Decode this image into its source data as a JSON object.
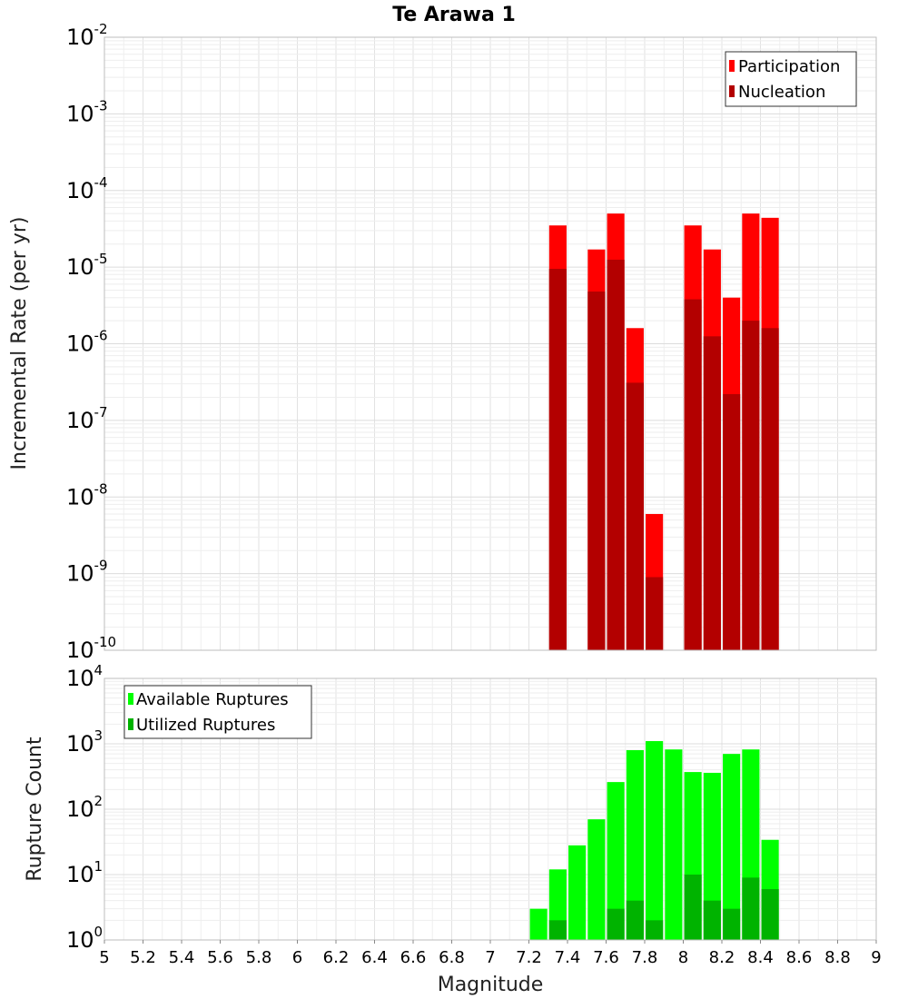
{
  "chart_data": [
    {
      "type": "bar",
      "title": "Te Arawa 1",
      "ylabel": "Incremental Rate (per yr)",
      "xlabel": "",
      "yscale": "log",
      "ylim_exp": [
        -10,
        -2
      ],
      "xlim": [
        5,
        9
      ],
      "legend_position": "top-right",
      "bar_width": 0.09,
      "series": [
        {
          "name": "Participation",
          "color": "#ff0000",
          "x": [
            7.35,
            7.55,
            7.65,
            7.75,
            7.85,
            8.05,
            8.15,
            8.25,
            8.35,
            8.45
          ],
          "values": [
            3.5e-05,
            1.7e-05,
            5e-05,
            1.6e-06,
            6e-09,
            3.5e-05,
            1.7e-05,
            4e-06,
            5e-05,
            4.4e-05
          ]
        },
        {
          "name": "Nucleation",
          "color": "#b30000",
          "x": [
            7.35,
            7.55,
            7.65,
            7.75,
            7.85,
            8.05,
            8.15,
            8.25,
            8.35,
            8.45
          ],
          "values": [
            9.5e-06,
            4.8e-06,
            1.25e-05,
            3.1e-07,
            9e-10,
            3.8e-06,
            1.25e-06,
            2.2e-07,
            2e-06,
            1.6e-06
          ]
        }
      ]
    },
    {
      "type": "bar",
      "title": "",
      "ylabel": "Rupture Count",
      "xlabel": "Magnitude",
      "yscale": "log",
      "ylim_exp": [
        0,
        4
      ],
      "xlim": [
        5,
        9
      ],
      "legend_position": "top-left",
      "bar_width": 0.09,
      "xticks": [
        "5",
        "5.2",
        "5.4",
        "5.6",
        "5.8",
        "6",
        "6.2",
        "6.4",
        "6.6",
        "6.8",
        "7",
        "7.2",
        "7.4",
        "7.6",
        "7.8",
        "8",
        "8.2",
        "8.4",
        "8.6",
        "8.8",
        "9"
      ],
      "series": [
        {
          "name": "Available Ruptures",
          "color": "#00ff00",
          "x": [
            7.05,
            7.25,
            7.35,
            7.45,
            7.55,
            7.65,
            7.75,
            7.85,
            7.95,
            8.05,
            8.15,
            8.25,
            8.35,
            8.45
          ],
          "values": [
            1,
            3,
            12,
            28,
            70,
            260,
            800,
            1100,
            820,
            370,
            360,
            700,
            820,
            34
          ]
        },
        {
          "name": "Utilized Ruptures",
          "color": "#00b300",
          "x": [
            7.35,
            7.55,
            7.65,
            7.75,
            7.85,
            8.05,
            8.15,
            8.25,
            8.35,
            8.45
          ],
          "values": [
            2,
            1,
            3,
            4,
            2,
            10,
            4,
            3,
            9,
            6
          ]
        }
      ]
    }
  ]
}
